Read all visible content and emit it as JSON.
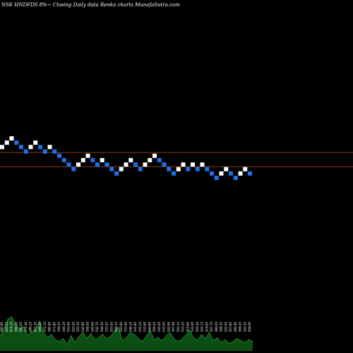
{
  "header": {
    "title": "NSE HNDFDS 8%~  Closing Daily data  Renko  charts MunafaSutra.com"
  },
  "colors": {
    "background": "#000000",
    "up_brick": "#ffffff",
    "down_brick": "#1e6fe8",
    "reference_line": "#8b3a1a",
    "volume_area": "#0b4d13",
    "volume_line": "#1e9a28",
    "text": "#ffffff"
  },
  "chart_data": [
    {
      "type": "renko",
      "brick_pct": 8,
      "y_scale": "log",
      "reference_levels": [
        569,
        527
      ],
      "bricks": [
        {
          "dir": "up",
          "value": 586
        },
        {
          "dir": "up",
          "value": 600
        },
        {
          "dir": "up",
          "value": 614
        },
        {
          "dir": "down",
          "value": 600
        },
        {
          "dir": "down",
          "value": 586
        },
        {
          "dir": "down",
          "value": 572
        },
        {
          "dir": "up",
          "value": 586
        },
        {
          "dir": "up",
          "value": 600
        },
        {
          "dir": "down",
          "value": 586
        },
        {
          "dir": "down",
          "value": 572
        },
        {
          "dir": "up",
          "value": 586
        },
        {
          "dir": "down",
          "value": 572
        },
        {
          "dir": "down",
          "value": 559
        },
        {
          "dir": "down",
          "value": 546
        },
        {
          "dir": "down",
          "value": 533
        },
        {
          "dir": "down",
          "value": 520
        },
        {
          "dir": "up",
          "value": 533
        },
        {
          "dir": "up",
          "value": 546
        },
        {
          "dir": "up",
          "value": 559
        },
        {
          "dir": "down",
          "value": 546
        },
        {
          "dir": "down",
          "value": 533
        },
        {
          "dir": "up",
          "value": 546
        },
        {
          "dir": "down",
          "value": 533
        },
        {
          "dir": "down",
          "value": 520
        },
        {
          "dir": "down",
          "value": 508
        },
        {
          "dir": "up",
          "value": 520
        },
        {
          "dir": "up",
          "value": 533
        },
        {
          "dir": "up",
          "value": 546
        },
        {
          "dir": "down",
          "value": 533
        },
        {
          "dir": "down",
          "value": 520
        },
        {
          "dir": "up",
          "value": 533
        },
        {
          "dir": "up",
          "value": 546
        },
        {
          "dir": "up",
          "value": 559
        },
        {
          "dir": "down",
          "value": 546
        },
        {
          "dir": "down",
          "value": 533
        },
        {
          "dir": "down",
          "value": 520
        },
        {
          "dir": "down",
          "value": 508
        },
        {
          "dir": "up",
          "value": 520
        },
        {
          "dir": "up",
          "value": 533
        },
        {
          "dir": "down",
          "value": 520
        },
        {
          "dir": "up",
          "value": 533
        },
        {
          "dir": "down",
          "value": 520
        },
        {
          "dir": "up",
          "value": 533
        },
        {
          "dir": "down",
          "value": 520
        },
        {
          "dir": "down",
          "value": 508
        },
        {
          "dir": "down",
          "value": 496
        },
        {
          "dir": "up",
          "value": 508
        },
        {
          "dir": "up",
          "value": 520
        },
        {
          "dir": "down",
          "value": 508
        },
        {
          "dir": "down",
          "value": 496
        },
        {
          "dir": "up",
          "value": 508
        },
        {
          "dir": "up",
          "value": 520
        },
        {
          "dir": "down",
          "value": 508
        }
      ]
    },
    {
      "type": "area",
      "name_hidden": true,
      "values": [
        14,
        22,
        31,
        33,
        25,
        21,
        24,
        15,
        19,
        20,
        29,
        18,
        13,
        16,
        11,
        9,
        12,
        6,
        15,
        8,
        14,
        18,
        12,
        17,
        11,
        13,
        16,
        12,
        14,
        19,
        23,
        10,
        13,
        18,
        16,
        12,
        9,
        14,
        20,
        11,
        13,
        10,
        14,
        18,
        12,
        9,
        11,
        15,
        20,
        13,
        10,
        16,
        12,
        18,
        10,
        13,
        8,
        11,
        7,
        9,
        12,
        10,
        8,
        11,
        9
      ],
      "brick_labels": [
        "585.85",
        "600.22",
        "614.10",
        "599.40",
        "585.65",
        "572.40",
        "586.25",
        "601.30",
        "586.45",
        "572.15",
        "585.90",
        "571.80",
        "559.55",
        "546.20",
        "533.45",
        "520.35",
        "533.10",
        "545.85",
        "558.95",
        "545.60",
        "532.75",
        "546.30",
        "533.20",
        "520.05",
        "508.15",
        "520.60",
        "533.40",
        "546.10",
        "532.85",
        "520.25",
        "533.60",
        "546.85",
        "559.20",
        "545.95",
        "533.05",
        "520.45",
        "507.90",
        "520.10",
        "533.25",
        "519.80",
        "532.95",
        "520.40",
        "533.15",
        "519.65",
        "507.70",
        "496.05",
        "508.35",
        "520.55",
        "507.85",
        "495.90",
        "508.20",
        "520.30",
        "508.00"
      ]
    }
  ]
}
